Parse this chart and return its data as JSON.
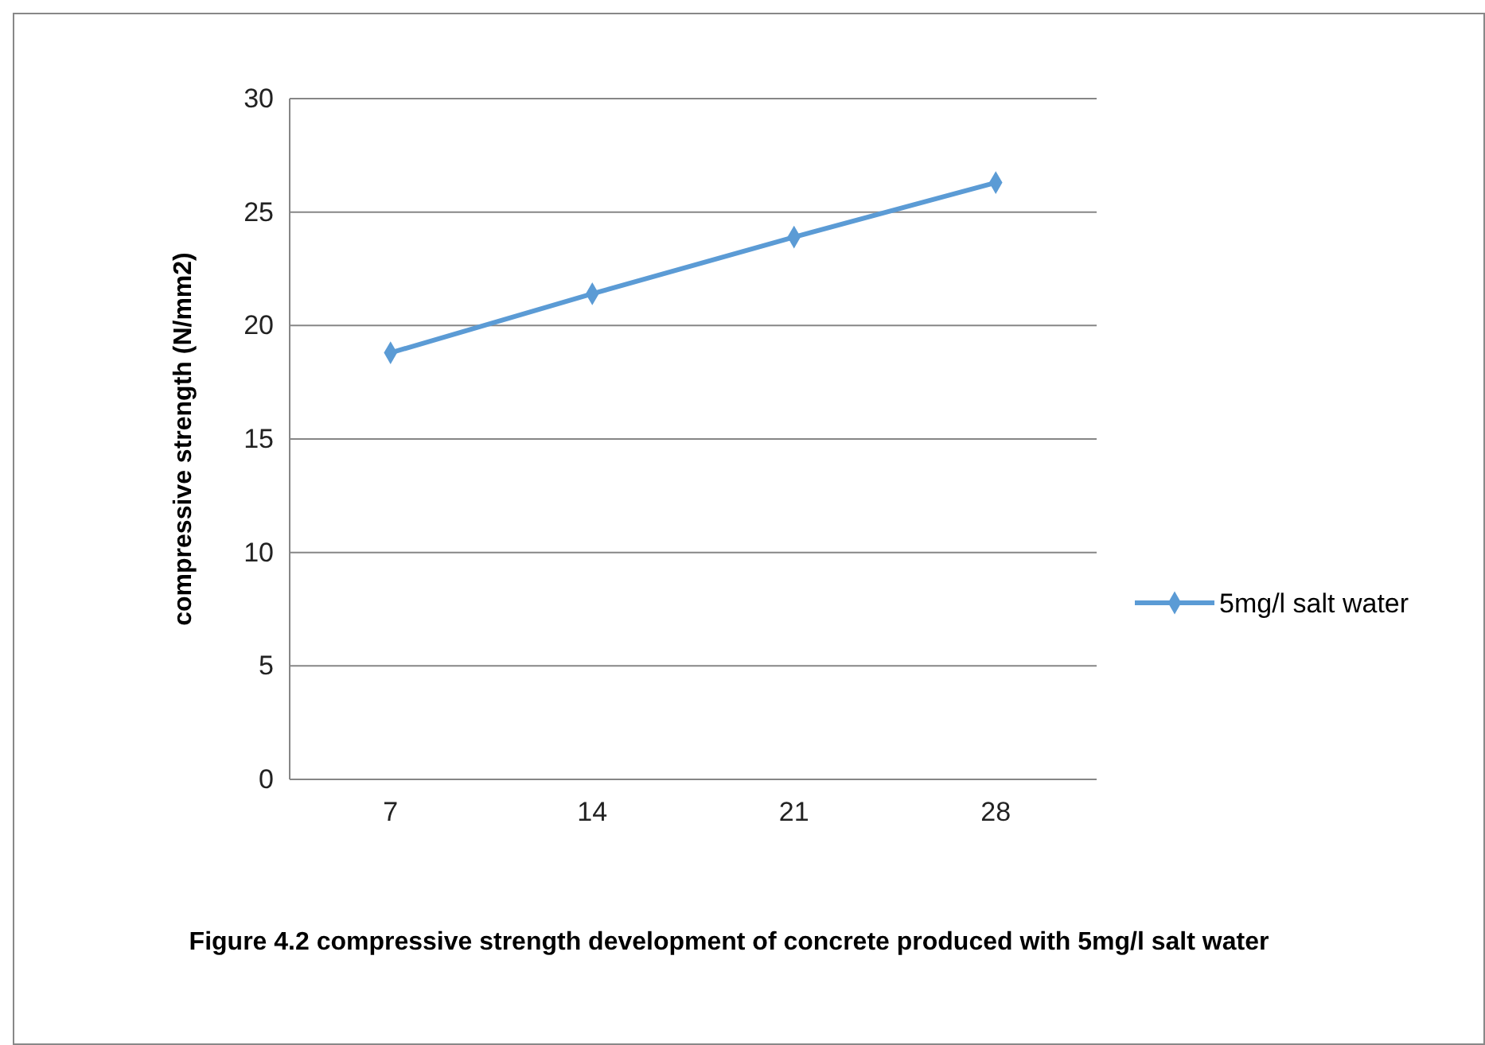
{
  "chart_data": {
    "type": "line",
    "categories": [
      "7",
      "14",
      "21",
      "28"
    ],
    "ylabel": "compressive strength (N/mm2)",
    "series": [
      {
        "name": "5mg/l salt water",
        "color": "#5b9bd5",
        "values": [
          18.8,
          21.4,
          23.9,
          26.3
        ]
      }
    ],
    "ylim": [
      0,
      30
    ],
    "yticks": [
      0,
      5,
      10,
      15,
      20,
      25,
      30
    ],
    "grid": "y",
    "legend": "right",
    "marker": "diamond",
    "line_style": "solid",
    "annotations": [
      "Figure 4.2 compressive strength development of concrete produced with 5mg/l salt water"
    ]
  }
}
